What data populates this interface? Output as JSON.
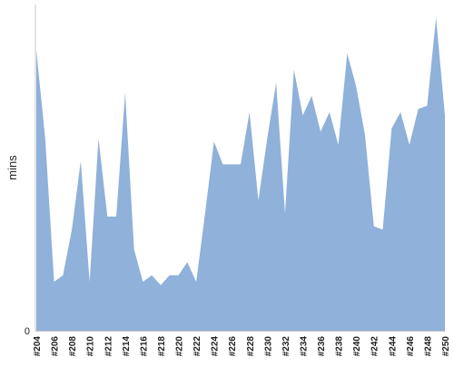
{
  "chart_data": {
    "type": "area",
    "ylabel": "mins",
    "x_tick_labels": [
      "#204",
      "#206",
      "#208",
      "#210",
      "#212",
      "#214",
      "#216",
      "#218",
      "#220",
      "#222",
      "#224",
      "#226",
      "#228",
      "#230",
      "#232",
      "#234",
      "#236",
      "#238",
      "#240",
      "#242",
      "#244",
      "#246",
      "#248",
      "#250"
    ],
    "x": [
      "#204",
      "#205",
      "#206",
      "#207",
      "#208",
      "#209",
      "#210",
      "#211",
      "#212",
      "#213",
      "#214",
      "#215",
      "#216",
      "#217",
      "#218",
      "#219",
      "#220",
      "#221",
      "#222",
      "#223",
      "#224",
      "#225",
      "#226",
      "#227",
      "#228",
      "#229",
      "#230",
      "#231",
      "#232",
      "#233",
      "#234",
      "#235",
      "#236",
      "#237",
      "#238",
      "#239",
      "#240",
      "#241",
      "#242",
      "#243",
      "#244",
      "#245",
      "#246",
      "#247",
      "#248",
      "#249",
      "#250"
    ],
    "values": [
      86,
      59,
      15,
      17,
      31,
      52,
      15,
      59,
      35,
      35,
      73,
      25,
      15,
      17,
      14,
      17,
      17,
      21,
      15,
      36,
      58,
      51,
      51,
      51,
      67,
      40,
      59,
      76,
      36,
      80,
      66,
      72,
      61,
      67,
      57,
      85,
      75,
      60,
      32,
      31,
      62,
      67,
      57,
      68,
      69,
      96,
      66
    ],
    "y_tick_labels": [
      "0"
    ],
    "ylim": [
      0,
      100
    ],
    "grid": false,
    "fill_color": "#8fb1da",
    "axis_color": "#c8c8c8"
  }
}
